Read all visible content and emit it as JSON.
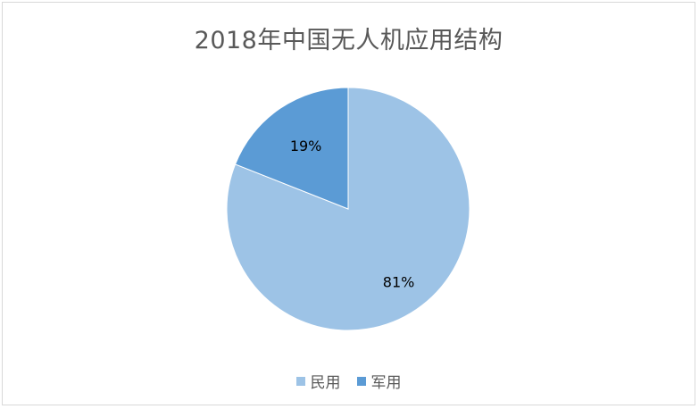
{
  "chart_data": {
    "type": "pie",
    "title": "2018年中国无人机应用结构",
    "categories": [
      "民用",
      "军用"
    ],
    "values": [
      81,
      19
    ],
    "labels": [
      "81%",
      "19%"
    ],
    "colors": [
      "#9dc3e6",
      "#5b9bd5"
    ],
    "legend_position": "bottom",
    "start_angle_deg": 0,
    "direction": "clockwise"
  }
}
